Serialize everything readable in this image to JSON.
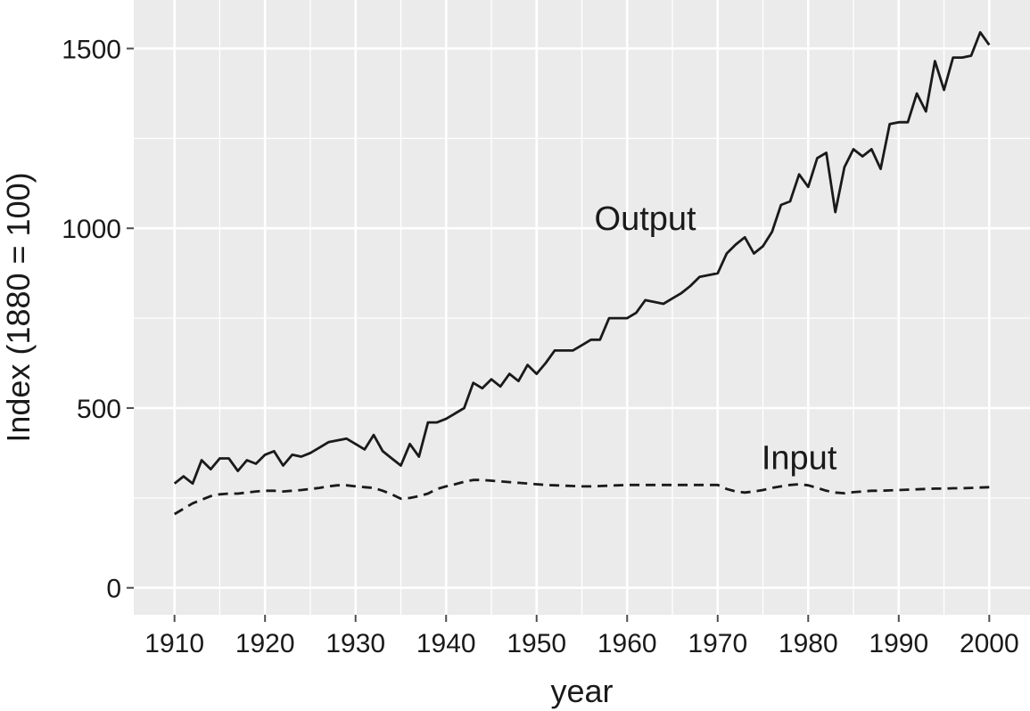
{
  "chart_data": {
    "type": "line",
    "xlabel": "year",
    "ylabel": "Index (1880 = 100)",
    "xlim": [
      1905.5,
      2004.5
    ],
    "ylim": [
      -75,
      1635
    ],
    "x_ticks": [
      1910,
      1920,
      1930,
      1940,
      1950,
      1960,
      1970,
      1980,
      1990,
      2000
    ],
    "y_ticks": [
      0,
      500,
      1000,
      1500
    ],
    "grid": true,
    "legend": "none",
    "x": [
      1910,
      1911,
      1912,
      1913,
      1914,
      1915,
      1916,
      1917,
      1918,
      1919,
      1920,
      1921,
      1922,
      1923,
      1924,
      1925,
      1926,
      1927,
      1928,
      1929,
      1930,
      1931,
      1932,
      1933,
      1934,
      1935,
      1936,
      1937,
      1938,
      1939,
      1940,
      1941,
      1942,
      1943,
      1944,
      1945,
      1946,
      1947,
      1948,
      1949,
      1950,
      1951,
      1952,
      1953,
      1954,
      1955,
      1956,
      1957,
      1958,
      1959,
      1960,
      1961,
      1962,
      1963,
      1964,
      1965,
      1966,
      1967,
      1968,
      1969,
      1970,
      1971,
      1972,
      1973,
      1974,
      1975,
      1976,
      1977,
      1978,
      1979,
      1980,
      1981,
      1982,
      1983,
      1984,
      1985,
      1986,
      1987,
      1988,
      1989,
      1990,
      1991,
      1992,
      1993,
      1994,
      1995,
      1996,
      1997,
      1998,
      1999,
      2000
    ],
    "series": [
      {
        "name": "Output",
        "style": "solid",
        "label_anchor": [
          1962,
          995
        ],
        "values": [
          290,
          310,
          290,
          355,
          330,
          360,
          360,
          325,
          355,
          345,
          370,
          380,
          340,
          370,
          365,
          375,
          390,
          405,
          410,
          415,
          400,
          385,
          425,
          380,
          360,
          340,
          400,
          365,
          460,
          460,
          470,
          485,
          500,
          570,
          555,
          580,
          560,
          595,
          575,
          620,
          595,
          625,
          660,
          660,
          660,
          675,
          690,
          690,
          750,
          750,
          750,
          765,
          800,
          795,
          790,
          805,
          820,
          840,
          865,
          870,
          875,
          930,
          955,
          975,
          930,
          950,
          990,
          1065,
          1075,
          1150,
          1115,
          1195,
          1210,
          1045,
          1170,
          1220,
          1200,
          1220,
          1165,
          1290,
          1295,
          1295,
          1375,
          1325,
          1465,
          1385,
          1475,
          1475,
          1480,
          1545,
          1510
        ]
      },
      {
        "name": "Input",
        "style": "dashed",
        "label_anchor": [
          1979,
          330
        ],
        "values": [
          205,
          220,
          235,
          245,
          255,
          260,
          262,
          262,
          265,
          268,
          270,
          270,
          268,
          270,
          272,
          275,
          278,
          282,
          285,
          285,
          282,
          280,
          278,
          270,
          260,
          248,
          250,
          255,
          262,
          275,
          282,
          288,
          295,
          300,
          300,
          298,
          296,
          294,
          292,
          290,
          288,
          286,
          285,
          284,
          283,
          282,
          282,
          283,
          284,
          285,
          286,
          286,
          286,
          286,
          286,
          286,
          286,
          286,
          286,
          286,
          286,
          275,
          268,
          265,
          268,
          272,
          278,
          282,
          286,
          288,
          285,
          278,
          270,
          265,
          263,
          266,
          268,
          270,
          270,
          271,
          272,
          273,
          274,
          275,
          276,
          276,
          277,
          277,
          278,
          279,
          280
        ]
      }
    ]
  },
  "colors": {
    "panel_background": "#ebebeb",
    "gridline": "#ffffff",
    "line": "#1a1a1a",
    "tick_mark": "#4d4d4d"
  }
}
